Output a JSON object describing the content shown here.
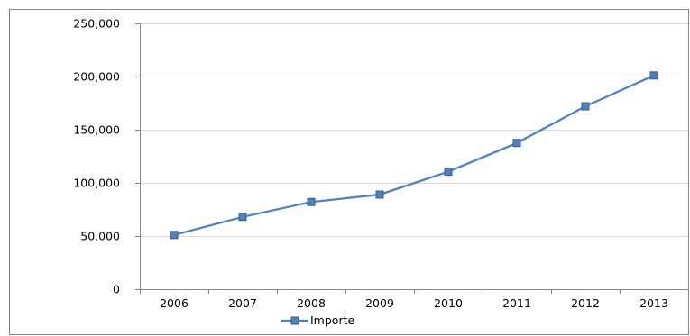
{
  "chart_data": {
    "type": "line",
    "title": "",
    "xlabel": "",
    "ylabel": "",
    "categories": [
      "2006",
      "2007",
      "2008",
      "2009",
      "2010",
      "2011",
      "2012",
      "2013"
    ],
    "series": [
      {
        "name": "Importe",
        "values": [
          51000,
          68000,
          82000,
          89000,
          110500,
          137500,
          172000,
          201000
        ]
      }
    ],
    "ylim": [
      0,
      250000
    ],
    "yticks": [
      "0",
      "50,000",
      "100,000",
      "150,000",
      "200,000",
      "250,000"
    ],
    "ytick_values": [
      0,
      50000,
      100000,
      150000,
      200000,
      250000
    ],
    "grid": "horizontal",
    "legend_position": "bottom",
    "colors": {
      "series": "#4f81bd",
      "marker": "#385d8a",
      "grid": "#d9d9d9",
      "axis": "#868686",
      "border": "#868686"
    }
  }
}
